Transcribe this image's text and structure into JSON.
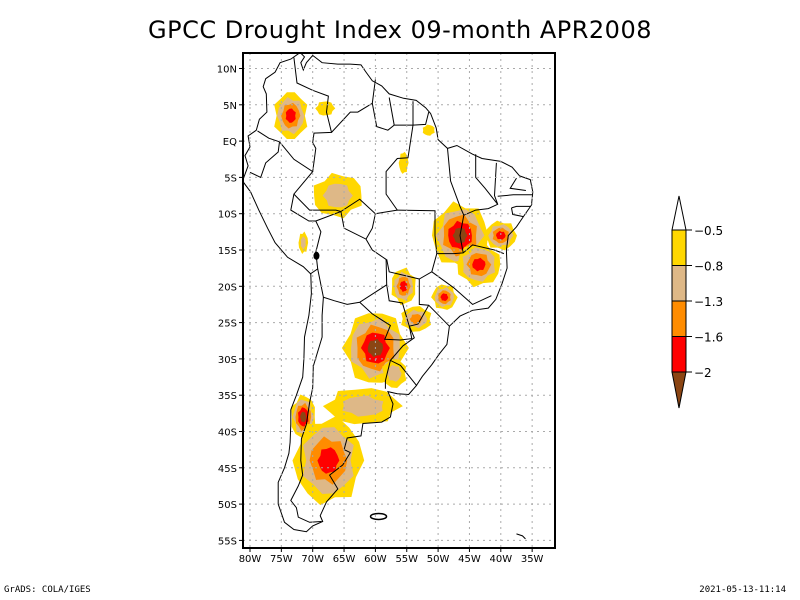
{
  "title": "GPCC Drought Index 09-month APR2008",
  "footer": {
    "left": "GrADS: COLA/IGES",
    "right": "2021-05-13-11:14"
  },
  "chart_data": {
    "type": "heatmap",
    "title": "GPCC Drought Index 09-month APR2008",
    "xlabel": "",
    "ylabel": "",
    "x_range_deg": [
      -81,
      -32
    ],
    "y_range_deg": [
      -56,
      12
    ],
    "grid": true,
    "x_ticks": [
      {
        "value": -80,
        "label": "80W"
      },
      {
        "value": -75,
        "label": "75W"
      },
      {
        "value": -70,
        "label": "70W"
      },
      {
        "value": -65,
        "label": "65W"
      },
      {
        "value": -60,
        "label": "60W"
      },
      {
        "value": -55,
        "label": "55W"
      },
      {
        "value": -50,
        "label": "50W"
      },
      {
        "value": -45,
        "label": "45W"
      },
      {
        "value": -40,
        "label": "40W"
      },
      {
        "value": -35,
        "label": "35W"
      }
    ],
    "y_ticks": [
      {
        "value": 10,
        "label": "10N"
      },
      {
        "value": 5,
        "label": "5N"
      },
      {
        "value": 0,
        "label": "EQ"
      },
      {
        "value": -5,
        "label": "5S"
      },
      {
        "value": -10,
        "label": "10S"
      },
      {
        "value": -15,
        "label": "15S"
      },
      {
        "value": -20,
        "label": "20S"
      },
      {
        "value": -25,
        "label": "25S"
      },
      {
        "value": -30,
        "label": "30S"
      },
      {
        "value": -35,
        "label": "35S"
      },
      {
        "value": -40,
        "label": "40S"
      },
      {
        "value": -45,
        "label": "45S"
      },
      {
        "value": -50,
        "label": "50S"
      },
      {
        "value": -55,
        "label": "55S"
      }
    ],
    "legend": {
      "placement": "right",
      "levels": [
        "-0.5",
        "-0.8",
        "-1.3",
        "-1.6",
        "-2"
      ],
      "colors": {
        "above_-0.5": "#ffffff",
        "-0.8_to_-0.5": "#ffd700",
        "-1.3_to_-0.8": "#deb887",
        "-1.6_to_-1.3": "#ff8c00",
        "-2_to_-1.6": "#ff0000",
        "below_-2": "#8b4513"
      }
    },
    "drought_regions": [
      {
        "name": "colombia-andes",
        "lon": -73.5,
        "lat": 3.5,
        "peak_class": "-2_to_-1.6",
        "extent_deg": [
          5.5,
          6.5
        ]
      },
      {
        "name": "venezuela-llanos",
        "lon": -68,
        "lat": 4.5,
        "peak_class": "-0.8_to_-0.5",
        "extent_deg": [
          3,
          2
        ]
      },
      {
        "name": "amapa",
        "lon": -51.5,
        "lat": 1.5,
        "peak_class": "-0.8_to_-0.5",
        "extent_deg": [
          2,
          1.5
        ]
      },
      {
        "name": "para-north",
        "lon": -55.5,
        "lat": -3,
        "peak_class": "-0.8_to_-0.5",
        "extent_deg": [
          1.5,
          3
        ]
      },
      {
        "name": "amazonas-southwest",
        "lon": -66,
        "lat": -7.5,
        "peak_class": "-1.3_to_-0.8",
        "extent_deg": [
          8,
          6
        ]
      },
      {
        "name": "peru-east",
        "lon": -71.5,
        "lat": -14,
        "peak_class": "-1.3_to_-0.8",
        "extent_deg": [
          1.5,
          3
        ]
      },
      {
        "name": "tocantins-bahia",
        "lon": -46.5,
        "lat": -13,
        "peak_class": "below_-2",
        "extent_deg": [
          9,
          9
        ]
      },
      {
        "name": "minas-gerais",
        "lon": -43.5,
        "lat": -17,
        "peak_class": "-2_to_-1.6",
        "extent_deg": [
          7,
          6
        ]
      },
      {
        "name": "bahia-coast",
        "lon": -40,
        "lat": -13,
        "peak_class": "-2_to_-1.6",
        "extent_deg": [
          5,
          4
        ]
      },
      {
        "name": "mato-grosso-sul",
        "lon": -55.5,
        "lat": -20,
        "peak_class": "-2_to_-1.6",
        "extent_deg": [
          4,
          5
        ]
      },
      {
        "name": "sao-paulo",
        "lon": -49,
        "lat": -21.5,
        "peak_class": "-2_to_-1.6",
        "extent_deg": [
          4,
          3.5
        ]
      },
      {
        "name": "parana-paraguay",
        "lon": -53.5,
        "lat": -24.5,
        "peak_class": "-1.6_to_-1.3",
        "extent_deg": [
          5,
          3.5
        ]
      },
      {
        "name": "argentina-chaco",
        "lon": -60,
        "lat": -28.5,
        "peak_class": "below_-2",
        "extent_deg": [
          10,
          10
        ]
      },
      {
        "name": "uruguay",
        "lon": -57,
        "lat": -32,
        "peak_class": "-1.3_to_-0.8",
        "extent_deg": [
          4,
          4
        ]
      },
      {
        "name": "pampas",
        "lon": -62,
        "lat": -36.5,
        "peak_class": "-1.3_to_-0.8",
        "extent_deg": [
          12,
          5
        ]
      },
      {
        "name": "chile-central",
        "lon": -71.5,
        "lat": -38,
        "peak_class": "below_-2",
        "extent_deg": [
          4,
          6
        ]
      },
      {
        "name": "patagonia",
        "lon": -67.5,
        "lat": -44,
        "peak_class": "-2_to_-1.6",
        "extent_deg": [
          11,
          12
        ]
      }
    ]
  }
}
